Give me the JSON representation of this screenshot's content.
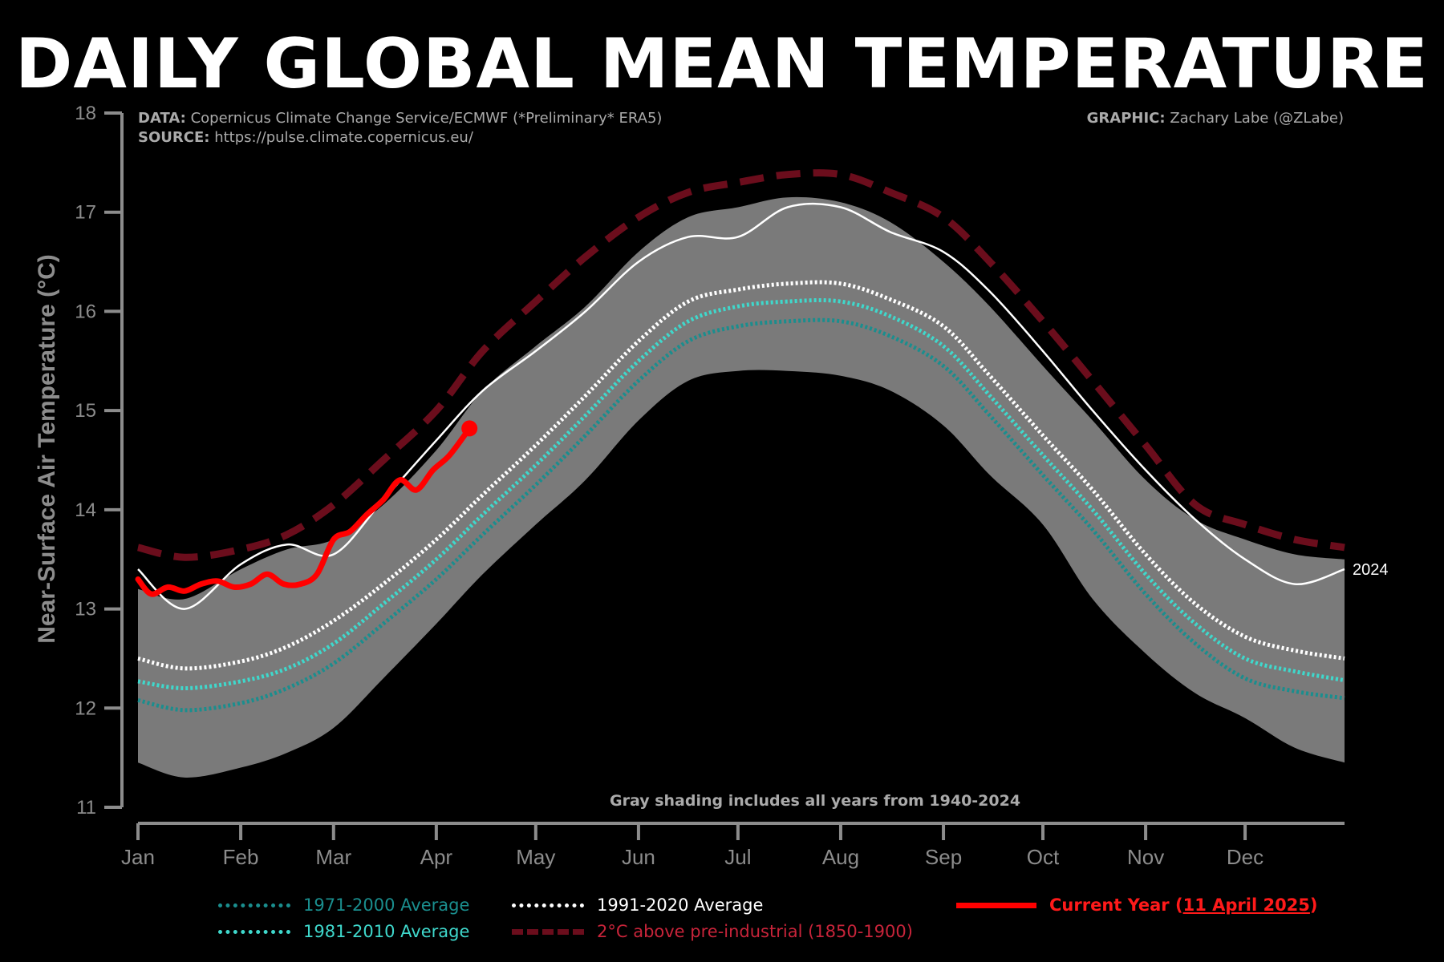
{
  "title": "DAILY GLOBAL MEAN TEMPERATURE",
  "credits": {
    "data_label": "DATA:",
    "data_text": "Copernicus Climate Change Service/ECMWF (*Preliminary* ERA5)",
    "source_label": "SOURCE:",
    "source_text": "https://pulse.climate.copernicus.eu/",
    "graphic_label": "GRAPHIC:",
    "graphic_text": "Zachary Labe (@ZLabe)"
  },
  "note": "Gray shading includes all years from 1940-2024",
  "legend": {
    "avg1971": "1971-2000 Average",
    "avg1981": "1981-2010 Average",
    "avg1991": "1991-2020 Average",
    "pre2c": "2°C above pre-industrial (1850-1900)",
    "current_prefix": "Current Year (",
    "current_date": "11 April 2025",
    "current_suffix": ")"
  },
  "colors": {
    "background": "#000000",
    "shading": "#7a7a7a",
    "avg1971": "#1a8e8e",
    "avg1981": "#3fd8cc",
    "avg1991": "#ffffff",
    "pre2c": "#6b0d1c",
    "current": "#ff0000",
    "year2024": "#ffffff",
    "axis": "#8c8c8c"
  },
  "chart_data": {
    "type": "line",
    "ylabel": "Near-Surface Air Temperature (°C)",
    "xlabel": "",
    "ylim": [
      11,
      18
    ],
    "yticks": [
      11,
      12,
      13,
      14,
      15,
      16,
      17,
      18
    ],
    "x_unit": "day of year",
    "xlim": [
      1,
      365
    ],
    "month_ticks": [
      {
        "label": "Jan",
        "day": 1
      },
      {
        "label": "Feb",
        "day": 32
      },
      {
        "label": "Mar",
        "day": 60
      },
      {
        "label": "Apr",
        "day": 91
      },
      {
        "label": "May",
        "day": 121
      },
      {
        "label": "Jun",
        "day": 152
      },
      {
        "label": "Jul",
        "day": 182
      },
      {
        "label": "Aug",
        "day": 213
      },
      {
        "label": "Sep",
        "day": 244
      },
      {
        "label": "Oct",
        "day": 274
      },
      {
        "label": "Nov",
        "day": 305
      },
      {
        "label": "Dec",
        "day": 335
      }
    ],
    "x": [
      1,
      15,
      32,
      46,
      60,
      75,
      91,
      105,
      121,
      136,
      152,
      167,
      182,
      197,
      213,
      228,
      244,
      258,
      274,
      289,
      305,
      320,
      335,
      350,
      365
    ],
    "range_1940_2024": {
      "min": [
        11.45,
        11.3,
        11.4,
        11.55,
        11.8,
        12.3,
        12.85,
        13.35,
        13.85,
        14.3,
        14.9,
        15.3,
        15.4,
        15.4,
        15.35,
        15.2,
        14.85,
        14.35,
        13.85,
        13.1,
        12.55,
        12.15,
        11.9,
        11.6,
        11.45
      ],
      "max": [
        13.2,
        13.1,
        13.4,
        13.6,
        13.7,
        14.05,
        14.6,
        15.2,
        15.65,
        16.05,
        16.6,
        16.95,
        17.05,
        17.15,
        17.1,
        16.9,
        16.5,
        16.05,
        15.45,
        14.9,
        14.3,
        13.9,
        13.7,
        13.55,
        13.5
      ]
    },
    "series": [
      {
        "name": "1971-2000 Average",
        "style": "dotted",
        "values": [
          12.08,
          11.98,
          12.05,
          12.2,
          12.45,
          12.85,
          13.3,
          13.75,
          14.25,
          14.75,
          15.3,
          15.7,
          15.85,
          15.9,
          15.9,
          15.75,
          15.45,
          14.95,
          14.35,
          13.8,
          13.15,
          12.65,
          12.3,
          12.17,
          12.1
        ]
      },
      {
        "name": "1981-2010 Average",
        "style": "dotted",
        "values": [
          12.27,
          12.2,
          12.27,
          12.4,
          12.65,
          13.05,
          13.5,
          13.95,
          14.45,
          14.95,
          15.5,
          15.9,
          16.05,
          16.1,
          16.1,
          15.95,
          15.65,
          15.15,
          14.55,
          14.0,
          13.35,
          12.85,
          12.5,
          12.37,
          12.28
        ]
      },
      {
        "name": "1991-2020 Average",
        "style": "dotted",
        "values": [
          12.5,
          12.4,
          12.47,
          12.62,
          12.88,
          13.25,
          13.7,
          14.15,
          14.65,
          15.15,
          15.7,
          16.1,
          16.22,
          16.28,
          16.28,
          16.12,
          15.85,
          15.35,
          14.75,
          14.2,
          13.55,
          13.05,
          12.72,
          12.58,
          12.5
        ]
      },
      {
        "name": "2°C above pre-industrial (1850-1900)",
        "style": "dashed",
        "values": [
          13.62,
          13.52,
          13.6,
          13.75,
          14.05,
          14.5,
          15.0,
          15.6,
          16.1,
          16.55,
          16.95,
          17.2,
          17.3,
          17.38,
          17.38,
          17.2,
          16.95,
          16.5,
          15.9,
          15.3,
          14.65,
          14.05,
          13.85,
          13.7,
          13.62
        ]
      },
      {
        "name": "2024",
        "style": "solid",
        "values": [
          13.4,
          13.0,
          13.45,
          13.65,
          13.55,
          14.1,
          14.7,
          15.2,
          15.6,
          16.0,
          16.5,
          16.75,
          16.75,
          17.05,
          17.05,
          16.8,
          16.6,
          16.2,
          15.6,
          15.0,
          14.4,
          13.9,
          13.5,
          13.25,
          13.4
        ]
      }
    ],
    "current_year": {
      "name": "Current Year (11 April 2025)",
      "x": [
        1,
        5,
        10,
        15,
        20,
        25,
        30,
        35,
        40,
        45,
        50,
        55,
        60,
        65,
        70,
        75,
        80,
        85,
        90,
        95,
        101
      ],
      "values": [
        13.3,
        13.15,
        13.22,
        13.18,
        13.25,
        13.28,
        13.22,
        13.25,
        13.35,
        13.25,
        13.25,
        13.35,
        13.7,
        13.78,
        13.95,
        14.1,
        14.3,
        14.2,
        14.4,
        14.55,
        14.82
      ]
    },
    "end_label": "2024"
  }
}
